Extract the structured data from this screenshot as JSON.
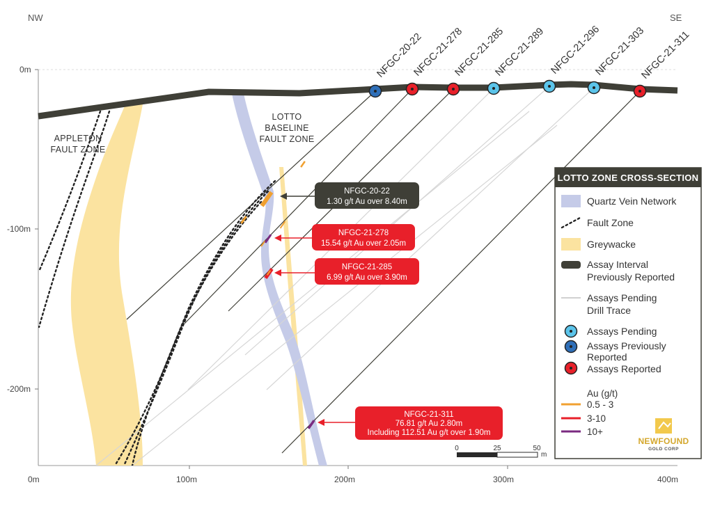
{
  "compass": {
    "left": "NW",
    "right": "SE"
  },
  "axes": {
    "y_ticks": [
      "0m",
      "-100m",
      "-200m"
    ],
    "x_ticks": [
      "0m",
      "100m",
      "200m",
      "300m",
      "400m"
    ]
  },
  "zones": {
    "appleton": [
      "APPLETON",
      "FAULT ZONE"
    ],
    "lotto": [
      "LOTTO",
      "BASELINE",
      "FAULT ZONE"
    ]
  },
  "drill_holes": [
    {
      "name": "NFGC-20-22",
      "status": "previously-reported"
    },
    {
      "name": "NFGC-21-278",
      "status": "reported"
    },
    {
      "name": "NFGC-21-285",
      "status": "reported"
    },
    {
      "name": "NFGC-21-289",
      "status": "pending"
    },
    {
      "name": "NFGC-21-296",
      "status": "pending"
    },
    {
      "name": "NFGC-21-303",
      "status": "pending"
    },
    {
      "name": "NFGC-21-311",
      "status": "reported"
    }
  ],
  "callouts": [
    {
      "hole": "NFGC-20-22",
      "lines": [
        "NFGC-20-22",
        "1.30 g/t Au over 8.40m"
      ],
      "style": "dark"
    },
    {
      "hole": "NFGC-21-278",
      "lines": [
        "NFGC-21-278",
        "15.54 g/t Au over 2.05m"
      ],
      "style": "red"
    },
    {
      "hole": "NFGC-21-285",
      "lines": [
        "NFGC-21-285",
        "6.99 g/t Au over 3.90m"
      ],
      "style": "red"
    },
    {
      "hole": "NFGC-21-311",
      "lines": [
        "NFGC-21-311",
        "76.81 g/t Au 2.80m",
        "Including 112.51 Au g/t over 1.90m"
      ],
      "style": "red"
    }
  ],
  "legend": {
    "title": "LOTTO ZONE CROSS-SECTION",
    "items": {
      "quartz": "Quartz Vein Network",
      "fault": "Fault Zone",
      "greywacke": "Greywacke",
      "assay_interval": [
        "Assay Interval",
        "Previously Reported"
      ],
      "pending_trace": [
        "Assays Pending",
        "Drill Trace"
      ],
      "assays_pending": "Assays Pending",
      "assays_prev": [
        "Assays Previously",
        "Reported"
      ],
      "assays_reported": "Assays Reported"
    },
    "au_title": "Au (g/t)",
    "au_ranges": [
      {
        "label": "0.5 - 3",
        "color": "#f0a030"
      },
      {
        "label": "3-10",
        "color": "#e8202a"
      },
      {
        "label": "10+",
        "color": "#7a2a80"
      }
    ]
  },
  "scale_bar": {
    "labels": [
      "0",
      "25",
      "50"
    ],
    "unit": "m"
  },
  "logo": {
    "name": "NEWFOUND",
    "sub": "GOLD CORP"
  },
  "colors": {
    "surface": "#3f3f37",
    "quartz": "#c5cbe8",
    "greywacke": "#fbe3a0",
    "red": "#e8202a",
    "dark_box": "#3f3f37",
    "pending": "#5bc4ea",
    "prev_reported": "#2f6fb8"
  }
}
